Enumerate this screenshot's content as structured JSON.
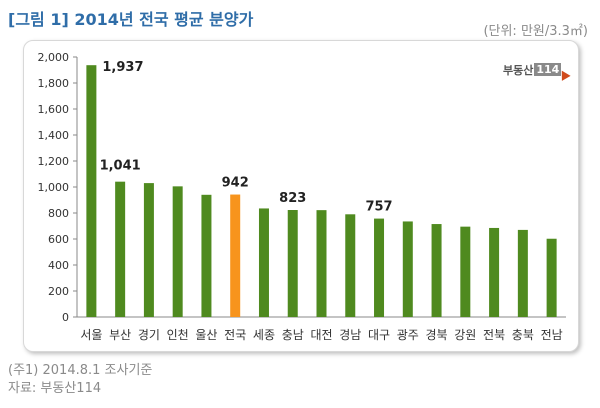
{
  "header": {
    "title": "[그림 1] 2014년 전국 평균 분양가",
    "unit": "(단위: 만원/3.3㎡)"
  },
  "logo": {
    "text": "부동산",
    "number": "114"
  },
  "footnote": {
    "line1": "(주1) 2014.8.1 조사기준",
    "line2": "자료: 부동산114"
  },
  "colors": {
    "bar": "#4f8a1f",
    "highlight": "#f7941d",
    "title": "#2f6da8"
  },
  "chart_data": {
    "type": "bar",
    "title": "2014년 전국 평균 분양가",
    "categories": [
      "서울",
      "부산",
      "경기",
      "인천",
      "울산",
      "전국",
      "세종",
      "충남",
      "대전",
      "경남",
      "대구",
      "광주",
      "경북",
      "강원",
      "전북",
      "충북",
      "전남"
    ],
    "values": [
      1937,
      1041,
      1030,
      1005,
      940,
      942,
      835,
      823,
      822,
      790,
      757,
      735,
      715,
      695,
      685,
      670,
      602
    ],
    "highlight_category": "전국",
    "data_labels": [
      {
        "category": "서울",
        "text": "1,937"
      },
      {
        "category": "부산",
        "text": "1,041"
      },
      {
        "category": "전국",
        "text": "942"
      },
      {
        "category": "충남",
        "text": "823"
      },
      {
        "category": "대구",
        "text": "757"
      }
    ],
    "ylim": [
      0,
      2000
    ],
    "yticks": [
      0,
      200,
      400,
      600,
      800,
      1000,
      1200,
      1400,
      1600,
      1800,
      2000
    ],
    "ytick_labels": [
      "0",
      "200",
      "400",
      "600",
      "800",
      "1,000",
      "1,200",
      "1,400",
      "1,600",
      "1,800",
      "2,000"
    ],
    "xlabel": "",
    "ylabel": "",
    "grid": false,
    "legend": "none"
  }
}
